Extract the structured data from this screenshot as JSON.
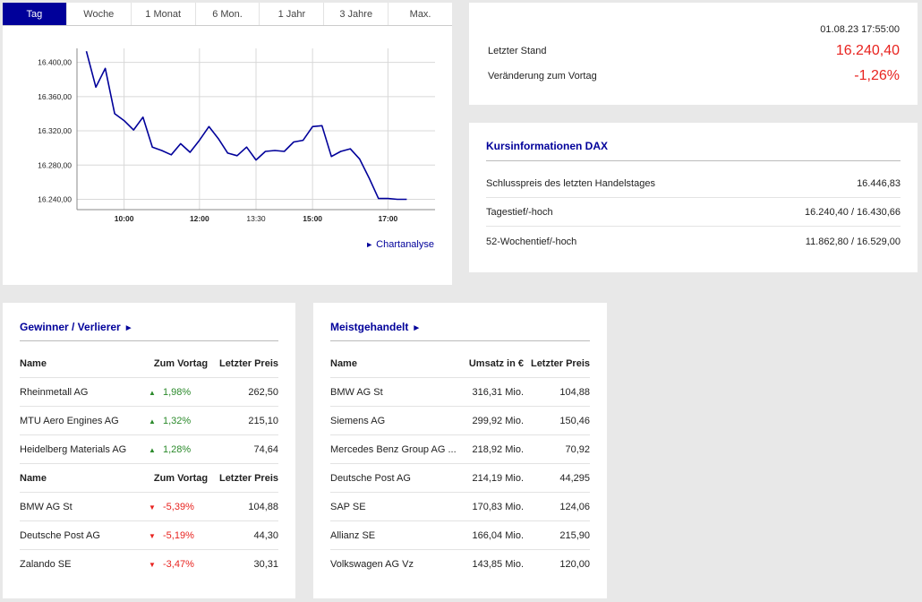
{
  "tabs": [
    "Tag",
    "Woche",
    "1 Monat",
    "6 Mon.",
    "1 Jahr",
    "3 Jahre",
    "Max."
  ],
  "chart": {
    "link_label": "Chartanalyse",
    "link_icon": "►"
  },
  "chart_data": {
    "type": "line",
    "series": [
      {
        "x": [
          "09:00",
          "09:15",
          "09:30",
          "09:45",
          "10:00",
          "10:15",
          "10:30",
          "10:45",
          "11:00",
          "11:15",
          "11:30",
          "11:45",
          "12:00",
          "12:15",
          "12:30",
          "12:45",
          "13:00",
          "13:15",
          "13:30",
          "13:45",
          "14:00",
          "14:15",
          "14:30",
          "14:45",
          "15:00",
          "15:15",
          "15:30",
          "15:45",
          "16:00",
          "16:15",
          "16:30",
          "16:45",
          "17:00",
          "17:15",
          "17:30"
        ],
        "values": [
          16413,
          16371,
          16393,
          16340,
          16332,
          16321,
          16336,
          16301,
          16297,
          16292,
          16305,
          16295,
          16309,
          16325,
          16311,
          16294,
          16291,
          16301,
          16286,
          16296,
          16297,
          16296,
          16307,
          16309,
          16325,
          16326,
          16290,
          16296,
          16299,
          16287,
          16265,
          16241,
          16241,
          16240,
          16240
        ]
      }
    ],
    "yticks": [
      "16.400,00",
      "16.360,00",
      "16.320,00",
      "16.280,00",
      "16.240,00"
    ],
    "ytick_values": [
      16400,
      16360,
      16320,
      16280,
      16240
    ],
    "xticks": [
      {
        "label": "10:00",
        "bold": true
      },
      {
        "label": "12:00",
        "bold": true
      },
      {
        "label": "13:30",
        "bold": false
      },
      {
        "label": "15:00",
        "bold": true
      },
      {
        "label": "17:00",
        "bold": true
      }
    ],
    "ylim": [
      16228,
      16432
    ],
    "color": "#00009a"
  },
  "quote": {
    "timestamp": "01.08.23 17:55:00",
    "last_label": "Letzter Stand",
    "last_value": "16.240,40",
    "change_label": "Veränderung zum Vortag",
    "change_value": "-1,26%"
  },
  "info": {
    "title": "Kursinformationen DAX",
    "rows": [
      {
        "label": "Schlusspreis des letzten Handelstages",
        "value": "16.446,83"
      },
      {
        "label": "Tagestief/-hoch",
        "value": "16.240,40 / 16.430,66"
      },
      {
        "label": "52-Wochentief/-hoch",
        "value": "11.862,80 / 16.529,00"
      }
    ]
  },
  "gainers": {
    "title": "Gewinner / Verlierer",
    "title_icon": "►",
    "headers": [
      "Name",
      "Zum Vortag",
      "Letzter Preis"
    ],
    "rows": [
      {
        "name": "Rheinmetall AG",
        "change": "1,98%",
        "price": "262,50",
        "dir": "up"
      },
      {
        "name": "MTU Aero Engines AG",
        "change": "1,32%",
        "price": "215,10",
        "dir": "up"
      },
      {
        "name": "Heidelberg Materials AG",
        "change": "1,28%",
        "price": "74,64",
        "dir": "up"
      }
    ],
    "headers2": [
      "Name",
      "Zum Vortag",
      "Letzter Preis"
    ],
    "rows2": [
      {
        "name": "BMW AG St",
        "change": "-5,39%",
        "price": "104,88",
        "dir": "down"
      },
      {
        "name": "Deutsche Post AG",
        "change": "-5,19%",
        "price": "44,30",
        "dir": "down"
      },
      {
        "name": "Zalando SE",
        "change": "-3,47%",
        "price": "30,31",
        "dir": "down"
      }
    ],
    "up_icon": "▲",
    "down_icon": "▼",
    "up_color": "#2b8a2b",
    "down_color": "#e8231f"
  },
  "most_traded": {
    "title": "Meistgehandelt",
    "title_icon": "►",
    "headers": [
      "Name",
      "Umsatz in €",
      "Letzter Preis"
    ],
    "rows": [
      {
        "name": "BMW AG St",
        "volume": "316,31 Mio.",
        "price": "104,88"
      },
      {
        "name": "Siemens AG",
        "volume": "299,92 Mio.",
        "price": "150,46"
      },
      {
        "name": "Mercedes Benz Group AG ...",
        "volume": "218,92 Mio.",
        "price": "70,92"
      },
      {
        "name": "Deutsche Post AG",
        "volume": "214,19 Mio.",
        "price": "44,295"
      },
      {
        "name": "SAP SE",
        "volume": "170,83 Mio.",
        "price": "124,06"
      },
      {
        "name": "Allianz SE",
        "volume": "166,04 Mio.",
        "price": "215,90"
      },
      {
        "name": "Volkswagen AG Vz",
        "volume": "143,85 Mio.",
        "price": "120,00"
      }
    ]
  },
  "colors": {
    "accent": "#00009a",
    "negative": "#e8231f",
    "positive": "#2b8a2b",
    "background": "#e8e8e8"
  }
}
